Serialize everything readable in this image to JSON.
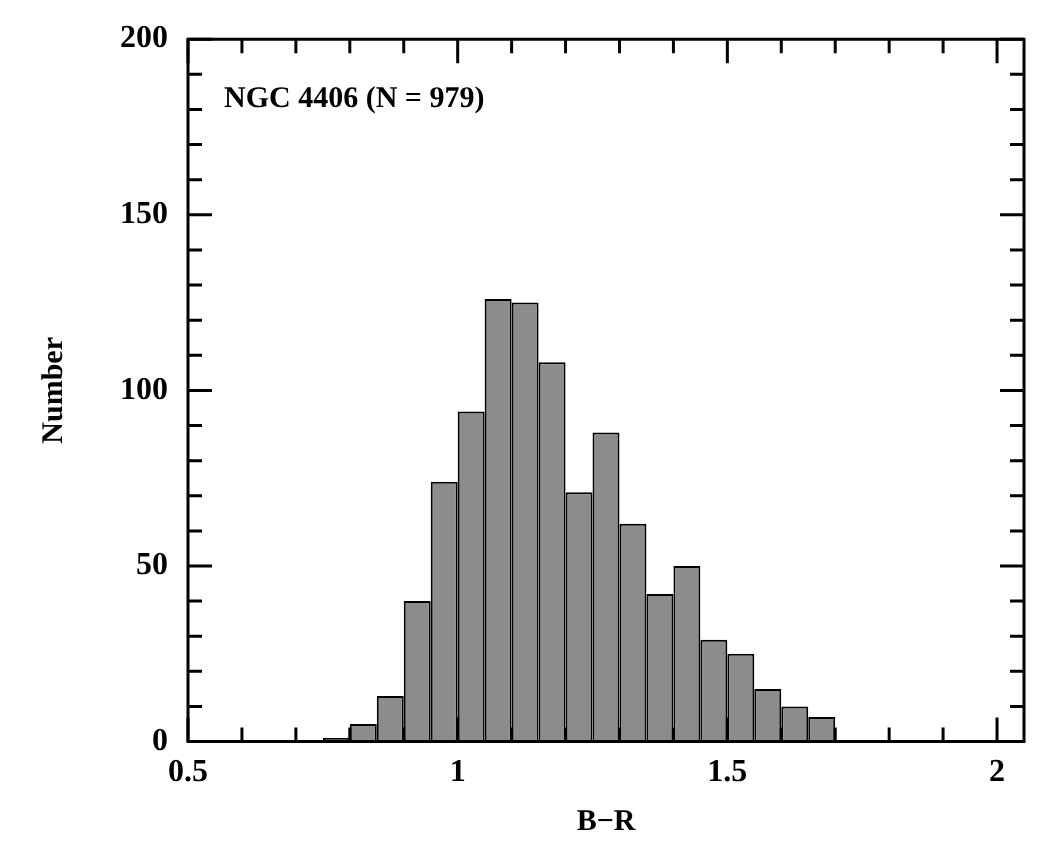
{
  "chart_data": {
    "type": "histogram",
    "title": "NGC 4406 (N = 979)",
    "xlabel": "B−R",
    "ylabel": "Number",
    "bins": [
      0.75,
      0.8,
      0.85,
      0.9,
      0.95,
      1.0,
      1.05,
      1.1,
      1.15,
      1.2,
      1.25,
      1.3,
      1.35,
      1.4,
      1.45,
      1.5,
      1.55,
      1.6,
      1.65,
      1.7
    ],
    "values": [
      1,
      5,
      13,
      40,
      74,
      94,
      126,
      125,
      108,
      71,
      88,
      62,
      42,
      50,
      29,
      25,
      15,
      10,
      7
    ],
    "color": "#8c8c8c",
    "xlim": [
      0.5,
      2.05
    ],
    "ylim": [
      0,
      200
    ],
    "xticks": [
      0.5,
      {
        "value": 0.6,
        "label": null
      },
      {
        "value": 0.7,
        "label": null
      },
      {
        "value": 0.8,
        "label": null
      },
      {
        "value": 0.9,
        "label": null
      },
      1,
      {
        "value": 1.1,
        "label": null
      },
      {
        "value": 1.2,
        "label": null
      },
      {
        "value": 1.3,
        "label": null
      },
      {
        "value": 1.4,
        "label": null
      },
      1.5,
      {
        "value": 1.6,
        "label": null
      },
      {
        "value": 1.7,
        "label": null
      },
      {
        "value": 1.8,
        "label": null
      },
      {
        "value": 1.9,
        "label": null
      },
      2
    ],
    "yticks": [
      0,
      {
        "value": 10,
        "label": null
      },
      {
        "value": 20,
        "label": null
      },
      {
        "value": 30,
        "label": null
      },
      {
        "value": 40,
        "label": null
      },
      50,
      {
        "value": 60,
        "label": null
      },
      {
        "value": 70,
        "label": null
      },
      {
        "value": 80,
        "label": null
      },
      {
        "value": 90,
        "label": null
      },
      100,
      {
        "value": 110,
        "label": null
      },
      {
        "value": 120,
        "label": null
      },
      {
        "value": 130,
        "label": null
      },
      {
        "value": 140,
        "label": null
      },
      150,
      {
        "value": 160,
        "label": null
      },
      {
        "value": 170,
        "label": null
      },
      {
        "value": 180,
        "label": null
      },
      {
        "value": 190,
        "label": null
      },
      200
    ],
    "grid": false,
    "legend": false
  }
}
